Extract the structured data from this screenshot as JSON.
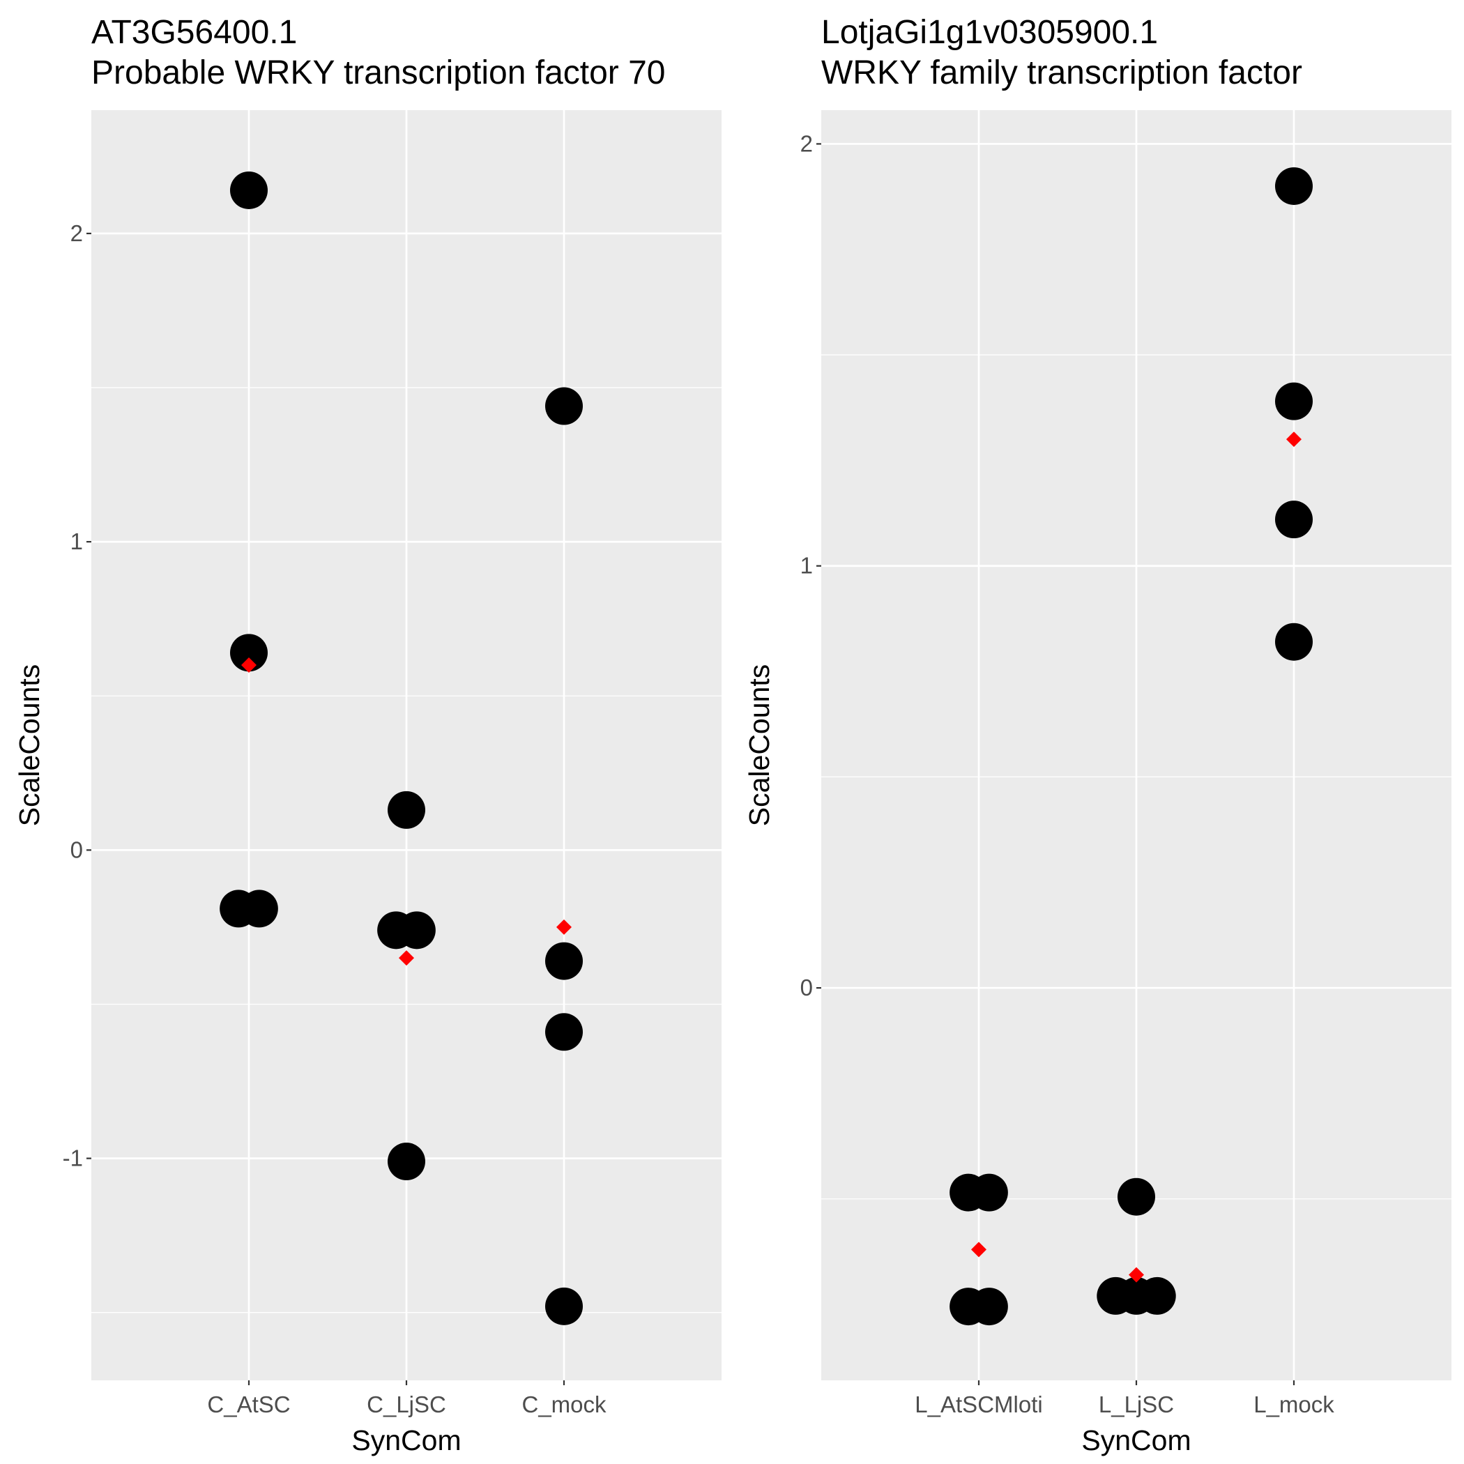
{
  "chart_data": [
    {
      "type": "scatter",
      "title": "AT3G56400.1",
      "subtitle": "Probable WRKY transcription factor 70",
      "xlabel": "SynCom",
      "ylabel": "ScaleCounts",
      "categories": [
        "C_AtSC",
        "C_LjSC",
        "C_mock"
      ],
      "ylim": [
        -1.72,
        2.4
      ],
      "yticks": [
        -1,
        0,
        1,
        2
      ],
      "grid": true,
      "series": [
        {
          "values": [
            {
              "x": "C_AtSC",
              "y": 2.14
            },
            {
              "x": "C_AtSC",
              "y": 0.64
            },
            {
              "x": "C_AtSC",
              "y": -0.19
            },
            {
              "x": "C_AtSC",
              "y": -0.19
            },
            {
              "x": "C_LjSC",
              "y": 0.13
            },
            {
              "x": "C_LjSC",
              "y": -0.26
            },
            {
              "x": "C_LjSC",
              "y": -0.26
            },
            {
              "x": "C_LjSC",
              "y": -1.01
            },
            {
              "x": "C_mock",
              "y": 1.44
            },
            {
              "x": "C_mock",
              "y": -0.36
            },
            {
              "x": "C_mock",
              "y": -0.59
            },
            {
              "x": "C_mock",
              "y": -1.48
            }
          ],
          "color": "#000000",
          "marker": "circle"
        },
        {
          "values": [
            {
              "x": "C_AtSC",
              "y": 0.6
            },
            {
              "x": "C_LjSC",
              "y": -0.35
            },
            {
              "x": "C_mock",
              "y": -0.25
            }
          ],
          "color": "#ff0000",
          "marker": "diamond"
        }
      ]
    },
    {
      "type": "scatter",
      "title": "LotjaGi1g1v0305900.1",
      "subtitle": "WRKY family transcription factor",
      "xlabel": "SynCom",
      "ylabel": "ScaleCounts",
      "categories": [
        "L_AtSCMloti",
        "L_LjSC",
        "L_mock"
      ],
      "ylim": [
        -0.93,
        2.08
      ],
      "yticks": [
        0,
        1,
        2
      ],
      "grid": true,
      "series": [
        {
          "values": [
            {
              "x": "L_AtSCMloti",
              "y": -0.485
            },
            {
              "x": "L_AtSCMloti",
              "y": -0.485
            },
            {
              "x": "L_AtSCMloti",
              "y": -0.755
            },
            {
              "x": "L_AtSCMloti",
              "y": -0.755
            },
            {
              "x": "L_LjSC",
              "y": -0.495
            },
            {
              "x": "L_LjSC",
              "y": -0.73
            },
            {
              "x": "L_LjSC",
              "y": -0.73
            },
            {
              "x": "L_LjSC",
              "y": -0.73
            },
            {
              "x": "L_mock",
              "y": 1.9
            },
            {
              "x": "L_mock",
              "y": 1.39
            },
            {
              "x": "L_mock",
              "y": 1.11
            },
            {
              "x": "L_mock",
              "y": 0.82
            }
          ],
          "color": "#000000",
          "marker": "circle"
        },
        {
          "values": [
            {
              "x": "L_AtSCMloti",
              "y": -0.62
            },
            {
              "x": "L_LjSC",
              "y": -0.68
            },
            {
              "x": "L_mock",
              "y": 1.3
            }
          ],
          "color": "#ff0000",
          "marker": "diamond"
        }
      ]
    }
  ]
}
